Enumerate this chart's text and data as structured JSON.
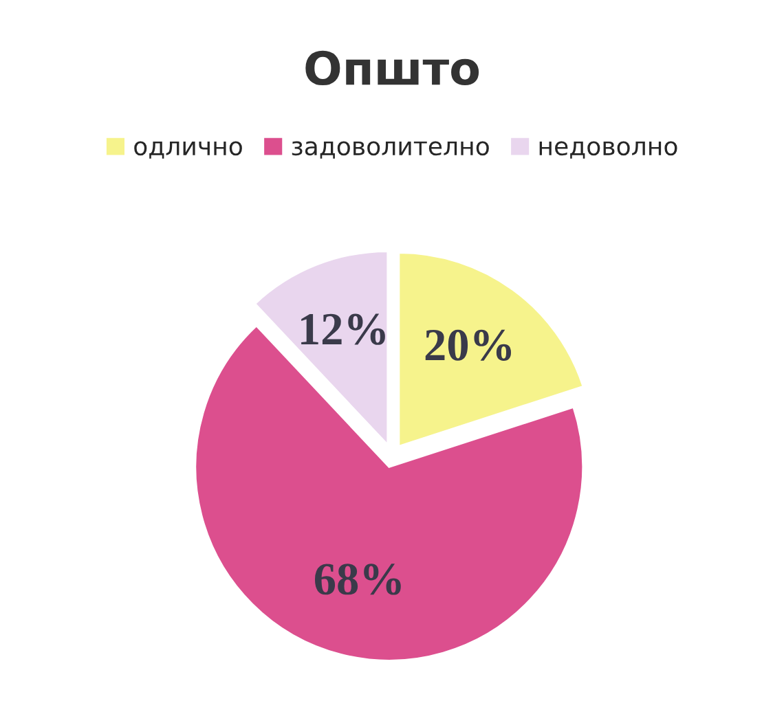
{
  "chart_data": {
    "type": "pie",
    "title": "Општо",
    "categories": [
      "одлично",
      "задоволително",
      "недоволно"
    ],
    "values": [
      20,
      68,
      12
    ],
    "colors": [
      "#f6f38c",
      "#dc4f8e",
      "#e9d6ee"
    ],
    "value_labels": [
      "20%",
      "68%",
      "12%"
    ],
    "legend": "top"
  }
}
